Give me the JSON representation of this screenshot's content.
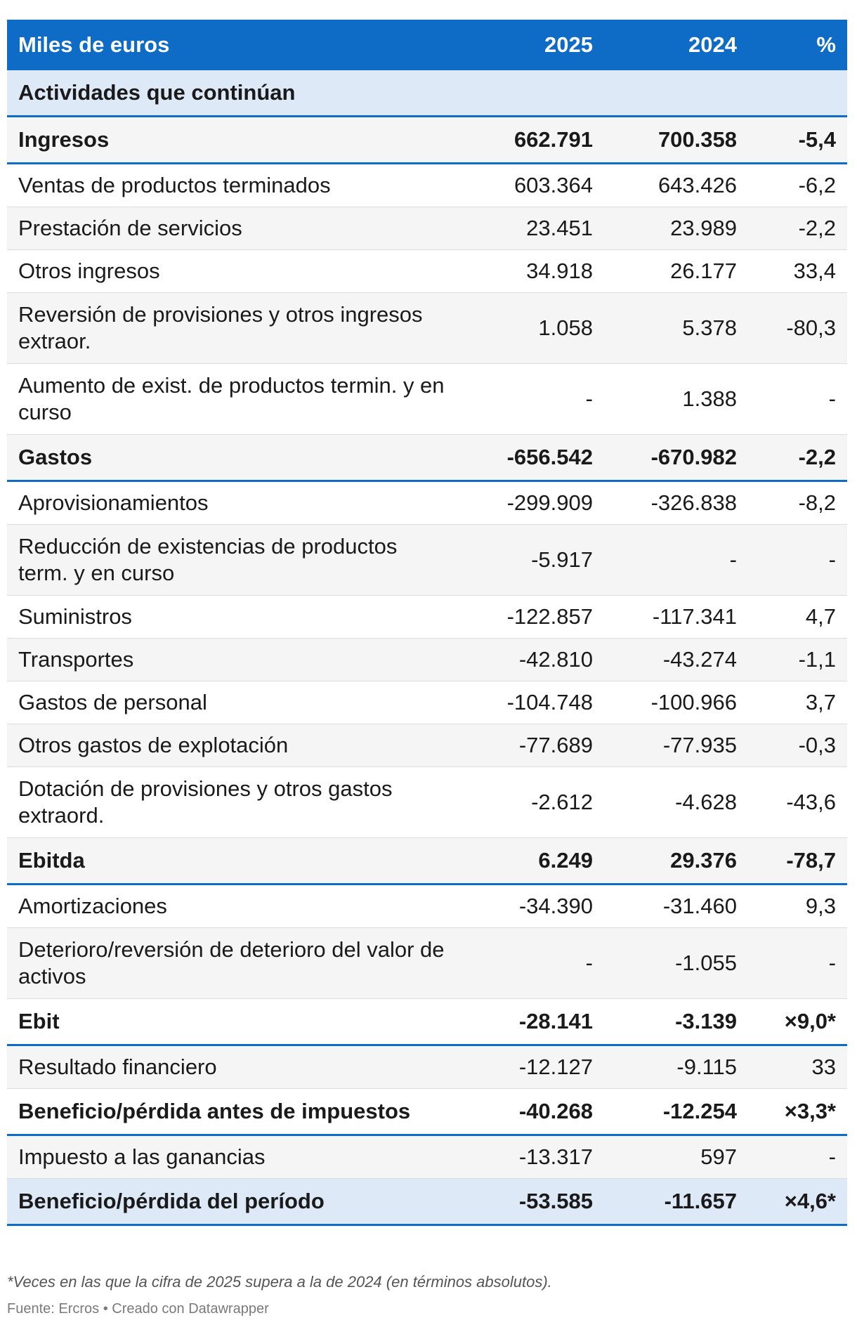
{
  "header": {
    "label": "Miles de euros",
    "y2025": "2025",
    "y2024": "2024",
    "pct": "%"
  },
  "section": "Actividades que continúan",
  "rows": [
    {
      "type": "subtotal",
      "label": "Ingresos",
      "v2025": "662.791",
      "v2024": "700.358",
      "pct": "-5,4"
    },
    {
      "type": "row",
      "label": "Ventas de productos terminados",
      "v2025": "603.364",
      "v2024": "643.426",
      "pct": "-6,2"
    },
    {
      "type": "row",
      "label": "Prestación de servicios",
      "v2025": "23.451",
      "v2024": "23.989",
      "pct": "-2,2"
    },
    {
      "type": "row",
      "label": "Otros ingresos",
      "v2025": "34.918",
      "v2024": "26.177",
      "pct": "33,4"
    },
    {
      "type": "row",
      "tall": true,
      "label": "Reversión de provisiones y otros ingresos extraor.",
      "v2025": "1.058",
      "v2024": "5.378",
      "pct": "-80,3"
    },
    {
      "type": "row",
      "tall": true,
      "label": "Aumento de exist. de productos termin. y en curso",
      "v2025": "-",
      "v2024": "1.388",
      "pct": "-"
    },
    {
      "type": "subtotal",
      "label": "Gastos",
      "v2025": "-656.542",
      "v2024": "-670.982",
      "pct": "-2,2"
    },
    {
      "type": "row",
      "label": "Aprovisionamientos",
      "v2025": "-299.909",
      "v2024": "-326.838",
      "pct": "-8,2"
    },
    {
      "type": "row",
      "tall": true,
      "label": "Reducción de existencias de productos term. y en curso",
      "v2025": "-5.917",
      "v2024": "-",
      "pct": "-"
    },
    {
      "type": "row",
      "label": "Suministros",
      "v2025": "-122.857",
      "v2024": "-117.341",
      "pct": "4,7"
    },
    {
      "type": "row",
      "label": "Transportes",
      "v2025": "-42.810",
      "v2024": "-43.274",
      "pct": "-1,1"
    },
    {
      "type": "row",
      "label": "Gastos de personal",
      "v2025": "-104.748",
      "v2024": "-100.966",
      "pct": "3,7"
    },
    {
      "type": "row",
      "label": "Otros gastos de explotación",
      "v2025": "-77.689",
      "v2024": "-77.935",
      "pct": "-0,3"
    },
    {
      "type": "row",
      "tall": true,
      "label": "Dotación de provisiones y otros gastos extraord.",
      "v2025": "-2.612",
      "v2024": "-4.628",
      "pct": "-43,6"
    },
    {
      "type": "subtotal",
      "label": "Ebitda",
      "v2025": "6.249",
      "v2024": "29.376",
      "pct": "-78,7"
    },
    {
      "type": "row",
      "label": "Amortizaciones",
      "v2025": "-34.390",
      "v2024": "-31.460",
      "pct": "9,3"
    },
    {
      "type": "row",
      "tall": true,
      "label": "Deterioro/reversión de deterioro del valor de activos",
      "v2025": "-",
      "v2024": "-1.055",
      "pct": "-"
    },
    {
      "type": "subtotal",
      "label": "Ebit",
      "v2025": "-28.141",
      "v2024": "-3.139",
      "pct": "×9,0*"
    },
    {
      "type": "row",
      "label": "Resultado financiero",
      "v2025": "-12.127",
      "v2024": "-9.115",
      "pct": "33"
    },
    {
      "type": "subtotal",
      "label": "Beneficio/pérdida antes de impuestos",
      "v2025": "-40.268",
      "v2024": "-12.254",
      "pct": "×3,3*"
    },
    {
      "type": "row",
      "label": "Impuesto a las ganancias",
      "v2025": "-13.317",
      "v2024": "597",
      "pct": "-"
    },
    {
      "type": "final",
      "label": "Beneficio/pérdida del período",
      "v2025": "-53.585",
      "v2024": "-11.657",
      "pct": "×4,6*"
    }
  ],
  "footnote": "*Veces en las que la cifra de 2025 supera a la de 2024 (en términos absolutos).",
  "source": "Fuente: Ercros • Creado con Datawrapper",
  "colors": {
    "header_bg": "#0f6cc6",
    "section_bg": "#dde9f6",
    "stripe": "#f5f5f5"
  }
}
